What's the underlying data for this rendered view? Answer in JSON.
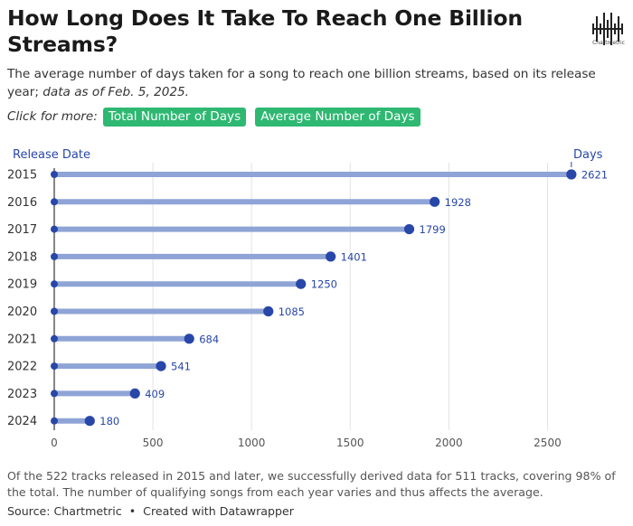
{
  "header": {
    "title": "How Long Does It Take To Reach One Billion Streams?",
    "subtitle_main": "The average number of days taken for a song to reach one billion streams, based on its release year;",
    "subtitle_italic": "data as of Feb. 5, 2025.",
    "logo_label": "Chartmetric"
  },
  "click_row": {
    "label": "Click for more:",
    "buttons": [
      "Total Number of Days",
      "Average Number of Days"
    ]
  },
  "colors": {
    "bar": "#8fa4d6",
    "dot": "#2847a8",
    "button_bg": "#2eb872",
    "grid": "#e3e3e3",
    "axis": "#444444"
  },
  "chart_data": {
    "type": "bar",
    "orientation": "horizontal",
    "style": "lollipop",
    "y_axis_label": "Release Date",
    "x_axis_label": "Days",
    "categories": [
      "2015",
      "2016",
      "2017",
      "2018",
      "2019",
      "2020",
      "2021",
      "2022",
      "2023",
      "2024"
    ],
    "values": [
      2621,
      1928,
      1799,
      1401,
      1250,
      1085,
      684,
      541,
      409,
      180
    ],
    "xlim": [
      0,
      2750
    ],
    "x_ticks": [
      0,
      500,
      1000,
      1500,
      2000,
      2500
    ],
    "grid": true,
    "data_labels": true
  },
  "footer": {
    "note": "Of the 522 tracks released in 2015 and later, we successfully derived data for 511 tracks, covering 98% of the total. The number of qualifying songs from each year varies and thus affects the average.",
    "source_label": "Source:",
    "source_name": "Chartmetric",
    "separator": "•",
    "credit": "Created with Datawrapper"
  }
}
